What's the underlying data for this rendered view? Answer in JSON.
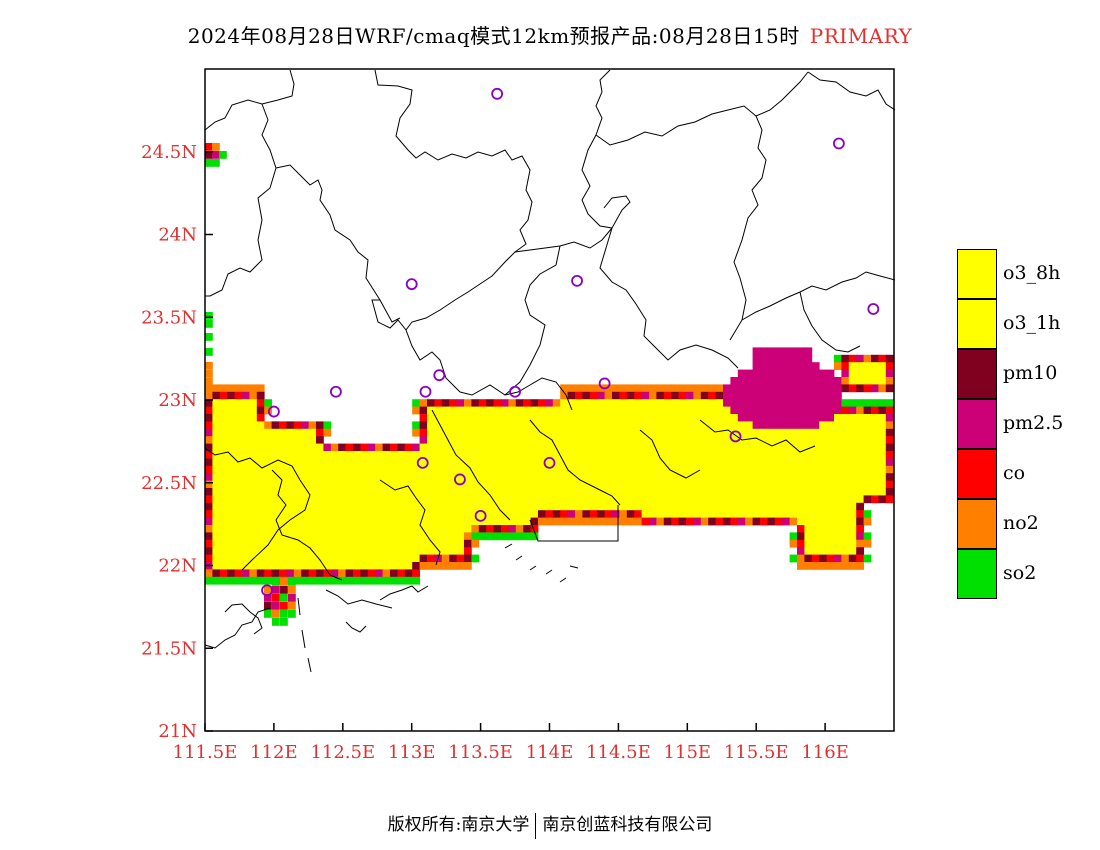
{
  "title": {
    "main": "2024年08月28日WRF/cmaq模式12km预报产品:08月28日15时",
    "tag": "PRIMARY"
  },
  "axes": {
    "x_ticks": [
      "111.5E",
      "112E",
      "112.5E",
      "113E",
      "113.5E",
      "114E",
      "114.5E",
      "115E",
      "115.5E",
      "116E"
    ],
    "y_ticks": [
      "24.5N",
      "24N",
      "23.5N",
      "23N",
      "22.5N",
      "22N",
      "21.5N",
      "21N"
    ],
    "lon_range": [
      111.5,
      116.5
    ],
    "lat_range": [
      21,
      25
    ],
    "label_color": "#e03030"
  },
  "legend": [
    {
      "label": "o3_8h",
      "color": "#ffff00"
    },
    {
      "label": "o3_1h",
      "color": "#ffff00"
    },
    {
      "label": "pm10",
      "color": "#800020"
    },
    {
      "label": "pm2.5",
      "color": "#cc0077"
    },
    {
      "label": "co",
      "color": "#ff0000"
    },
    {
      "label": "no2",
      "color": "#ff8000"
    },
    {
      "label": "so2",
      "color": "#00e000"
    }
  ],
  "copyright": {
    "left": "版权所有:南京大学",
    "right": "南京创蓝科技有限公司"
  },
  "stations": [
    [
      113.62,
      24.85
    ],
    [
      116.1,
      24.55
    ],
    [
      113.0,
      23.7
    ],
    [
      114.2,
      23.72
    ],
    [
      116.35,
      23.55
    ],
    [
      112.45,
      23.05
    ],
    [
      113.1,
      23.05
    ],
    [
      113.2,
      23.15
    ],
    [
      113.75,
      23.05
    ],
    [
      114.4,
      23.1
    ],
    [
      112.0,
      22.93
    ],
    [
      115.35,
      22.78
    ],
    [
      113.08,
      22.62
    ],
    [
      113.35,
      22.52
    ],
    [
      114.0,
      22.62
    ],
    [
      113.5,
      22.3
    ],
    [
      111.95,
      21.85
    ]
  ]
}
